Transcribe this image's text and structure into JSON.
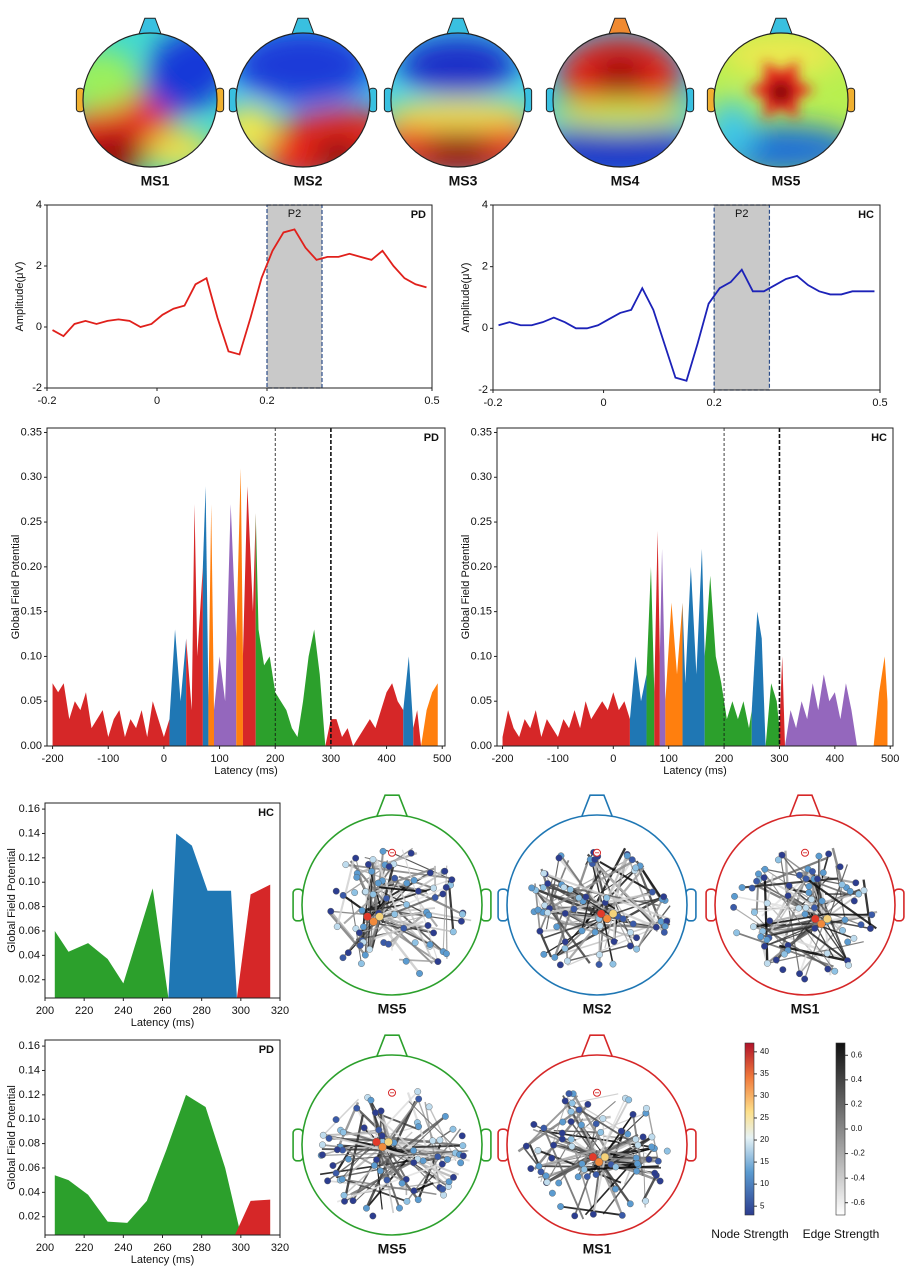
{
  "topomaps": [
    {
      "label": "MS1",
      "color": "#d62728"
    },
    {
      "label": "MS2",
      "color": "#1f77b4"
    },
    {
      "label": "MS3",
      "color": "#ff7f0e"
    },
    {
      "label": "MS4",
      "color": "#9467bd"
    },
    {
      "label": "MS5",
      "color": "#2ca02c"
    }
  ],
  "chart_data": [
    {
      "type": "line",
      "panel_label": "PD",
      "ylabel": "Amplitude(μV)",
      "highlight": {
        "label": "P2",
        "xlim": [
          0.2,
          0.3
        ]
      },
      "x": [
        -0.19,
        -0.17,
        -0.15,
        -0.13,
        -0.11,
        -0.09,
        -0.07,
        -0.05,
        -0.03,
        -0.01,
        0.01,
        0.03,
        0.05,
        0.07,
        0.09,
        0.11,
        0.13,
        0.15,
        0.17,
        0.19,
        0.21,
        0.23,
        0.25,
        0.27,
        0.29,
        0.31,
        0.33,
        0.35,
        0.37,
        0.39,
        0.41,
        0.43,
        0.45,
        0.47,
        0.49
      ],
      "series": [
        {
          "color": "#e0201b",
          "values": [
            -0.1,
            -0.3,
            0.1,
            0.2,
            0.1,
            0.2,
            0.25,
            0.2,
            0.0,
            0.1,
            0.4,
            0.6,
            0.7,
            1.4,
            1.6,
            0.3,
            -0.8,
            -0.9,
            0.3,
            1.6,
            2.5,
            3.1,
            3.2,
            2.6,
            2.2,
            2.3,
            2.3,
            2.4,
            2.3,
            2.2,
            2.5,
            2.0,
            1.6,
            1.4,
            1.3
          ]
        }
      ],
      "xlim": [
        -0.2,
        0.5
      ],
      "xticks": [
        -0.2,
        0,
        0.2,
        0.5
      ],
      "ylim": [
        -2,
        4
      ],
      "yticks": [
        -2,
        0,
        2,
        4
      ]
    },
    {
      "type": "line",
      "panel_label": "HC",
      "ylabel": "Amplitude(μV)",
      "highlight": {
        "label": "P2",
        "xlim": [
          0.2,
          0.3
        ]
      },
      "x": [
        -0.19,
        -0.17,
        -0.15,
        -0.13,
        -0.11,
        -0.09,
        -0.07,
        -0.05,
        -0.03,
        -0.01,
        0.01,
        0.03,
        0.05,
        0.07,
        0.09,
        0.11,
        0.13,
        0.15,
        0.17,
        0.19,
        0.21,
        0.23,
        0.25,
        0.27,
        0.29,
        0.31,
        0.33,
        0.35,
        0.37,
        0.39,
        0.41,
        0.43,
        0.45,
        0.47,
        0.49
      ],
      "series": [
        {
          "color": "#1c22b8",
          "values": [
            0.1,
            0.2,
            0.1,
            0.1,
            0.2,
            0.35,
            0.2,
            0.0,
            0.0,
            0.1,
            0.3,
            0.5,
            0.6,
            1.3,
            0.6,
            -0.5,
            -1.6,
            -1.7,
            -0.5,
            0.8,
            1.3,
            1.5,
            1.9,
            1.2,
            1.2,
            1.4,
            1.6,
            1.7,
            1.4,
            1.2,
            1.1,
            1.1,
            1.2,
            1.2,
            1.2
          ]
        }
      ],
      "xlim": [
        -0.2,
        0.5
      ],
      "xticks": [
        -0.2,
        0,
        0.2,
        0.5
      ],
      "ylim": [
        -2,
        4
      ],
      "yticks": [
        -2,
        0,
        2,
        4
      ]
    },
    {
      "type": "area",
      "panel_label": "PD",
      "ylabel": "Global Field Potential",
      "xlabel": "Latency (ms)",
      "vlines": [
        200,
        300
      ],
      "series": [
        {
          "color": "#d62728",
          "x": [
            -200,
            -190,
            -180,
            -170,
            -160,
            -150,
            -140,
            -130,
            -120,
            -110,
            -100,
            -90,
            -80,
            -70,
            -60,
            -50,
            -40,
            -30,
            -20,
            -10,
            0,
            10
          ],
          "values": [
            0.07,
            0.06,
            0.07,
            0.03,
            0.05,
            0.04,
            0.06,
            0.02,
            0.03,
            0.04,
            0.01,
            0.03,
            0.04,
            0.01,
            0.03,
            0.02,
            0.04,
            0.01,
            0.05,
            0.03,
            0.01,
            0.03
          ]
        },
        {
          "color": "#1f77b4",
          "x": [
            10,
            20,
            30,
            40
          ],
          "values": [
            0.03,
            0.13,
            0.05,
            0.12
          ]
        },
        {
          "color": "#d62728",
          "x": [
            40,
            50,
            55,
            60,
            70
          ],
          "values": [
            0.12,
            0.04,
            0.27,
            0.1,
            0.2
          ]
        },
        {
          "color": "#1f77b4",
          "x": [
            70,
            75,
            80
          ],
          "values": [
            0.2,
            0.29,
            0.05
          ]
        },
        {
          "color": "#ff7f0e",
          "x": [
            80,
            85,
            90
          ],
          "values": [
            0.05,
            0.27,
            0.04
          ]
        },
        {
          "color": "#9467bd",
          "x": [
            90,
            100,
            110,
            120,
            130
          ],
          "values": [
            0.04,
            0.1,
            0.05,
            0.27,
            0.12
          ]
        },
        {
          "color": "#ff7f0e",
          "x": [
            130,
            138,
            142
          ],
          "values": [
            0.12,
            0.31,
            0.1
          ]
        },
        {
          "color": "#d62728",
          "x": [
            142,
            150,
            160,
            165
          ],
          "values": [
            0.1,
            0.29,
            0.15,
            0.26
          ]
        },
        {
          "color": "#2ca02c",
          "x": [
            165,
            170,
            180,
            190,
            200,
            210,
            220,
            230,
            240,
            250,
            260,
            270,
            280,
            290
          ],
          "values": [
            0.26,
            0.13,
            0.09,
            0.1,
            0.06,
            0.05,
            0.04,
            0.02,
            0.01,
            0.05,
            0.1,
            0.13,
            0.08,
            0.0
          ]
        },
        {
          "color": "#d62728",
          "x": [
            290,
            300,
            310,
            320,
            330,
            340,
            350,
            360,
            370,
            380,
            390,
            400,
            410,
            420,
            430
          ],
          "values": [
            0.0,
            0.03,
            0.03,
            0.01,
            0.02,
            0.0,
            0.01,
            0.02,
            0.03,
            0.02,
            0.04,
            0.06,
            0.07,
            0.05,
            0.04
          ]
        },
        {
          "color": "#1f77b4",
          "x": [
            430,
            440,
            448
          ],
          "values": [
            0.04,
            0.1,
            0.02
          ]
        },
        {
          "color": "#d62728",
          "x": [
            448,
            455,
            462
          ],
          "values": [
            0.02,
            0.04,
            0.0
          ]
        },
        {
          "color": "#ff7f0e",
          "x": [
            462,
            472,
            482,
            492
          ],
          "values": [
            0.0,
            0.04,
            0.06,
            0.07
          ]
        }
      ],
      "xlim": [
        -210,
        505
      ],
      "xticks": [
        -200,
        -100,
        0,
        100,
        200,
        300,
        400,
        500
      ],
      "ylim": [
        0,
        0.355
      ],
      "yticks": [
        {
          "value": 0,
          "label": "0.00"
        },
        0.05,
        {
          "value": 0.1,
          "label": "0.10"
        },
        0.15,
        {
          "value": 0.2,
          "label": "0.20"
        },
        0.25,
        {
          "value": 0.3,
          "label": "0.30"
        },
        0.35
      ]
    },
    {
      "type": "area",
      "panel_label": "HC",
      "ylabel": "Global Field Potential",
      "xlabel": "Latency (ms)",
      "vlines": [
        200,
        300
      ],
      "series": [
        {
          "color": "#d62728",
          "x": [
            -200,
            -190,
            -180,
            -170,
            -160,
            -150,
            -140,
            -130,
            -120,
            -110,
            -100,
            -90,
            -80,
            -70,
            -60,
            -50,
            -40,
            -30,
            -20,
            -10,
            0,
            10,
            20,
            30
          ],
          "values": [
            0.01,
            0.04,
            0.02,
            0.01,
            0.03,
            0.02,
            0.04,
            0.01,
            0.03,
            0.02,
            0.01,
            0.03,
            0.02,
            0.04,
            0.02,
            0.05,
            0.03,
            0.04,
            0.05,
            0.04,
            0.06,
            0.04,
            0.05,
            0.03
          ]
        },
        {
          "color": "#1f77b4",
          "x": [
            30,
            40,
            50,
            60
          ],
          "values": [
            0.03,
            0.1,
            0.05,
            0.08
          ]
        },
        {
          "color": "#2ca02c",
          "x": [
            60,
            68,
            74
          ],
          "values": [
            0.08,
            0.2,
            0.06
          ]
        },
        {
          "color": "#d62728",
          "x": [
            74,
            80,
            84
          ],
          "values": [
            0.06,
            0.24,
            0.1
          ]
        },
        {
          "color": "#9467bd",
          "x": [
            84,
            88,
            94
          ],
          "values": [
            0.1,
            0.22,
            0.05
          ]
        },
        {
          "color": "#ff7f0e",
          "x": [
            94,
            105,
            115,
            125
          ],
          "values": [
            0.05,
            0.16,
            0.08,
            0.16
          ]
        },
        {
          "color": "#1f77b4",
          "x": [
            125,
            130,
            140,
            150,
            160,
            165
          ],
          "values": [
            0.16,
            0.07,
            0.2,
            0.08,
            0.22,
            0.1
          ]
        },
        {
          "color": "#2ca02c",
          "x": [
            165,
            175,
            185,
            195,
            205,
            215,
            225,
            235,
            245,
            250
          ],
          "values": [
            0.1,
            0.19,
            0.1,
            0.07,
            0.03,
            0.05,
            0.03,
            0.05,
            0.02,
            0.04
          ]
        },
        {
          "color": "#1f77b4",
          "x": [
            250,
            260,
            268,
            275
          ],
          "values": [
            0.04,
            0.15,
            0.12,
            0.0
          ]
        },
        {
          "color": "#2ca02c",
          "x": [
            275,
            285,
            295,
            300
          ],
          "values": [
            0.0,
            0.07,
            0.05,
            0.02
          ]
        },
        {
          "color": "#d62728",
          "x": [
            300,
            305,
            310
          ],
          "values": [
            0.02,
            0.1,
            0.0
          ]
        },
        {
          "color": "#9467bd",
          "x": [
            310,
            320,
            330,
            340,
            350,
            360,
            370,
            380,
            390,
            400,
            410,
            420,
            430,
            440
          ],
          "values": [
            0.0,
            0.04,
            0.02,
            0.05,
            0.03,
            0.07,
            0.04,
            0.08,
            0.05,
            0.06,
            0.03,
            0.07,
            0.04,
            0.0
          ]
        },
        {
          "color": "#ff7f0e",
          "x": [
            470,
            480,
            490,
            495
          ],
          "values": [
            0.0,
            0.06,
            0.1,
            0.05
          ]
        }
      ],
      "xlim": [
        -210,
        505
      ],
      "xticks": [
        -200,
        -100,
        0,
        100,
        200,
        300,
        400,
        500
      ],
      "ylim": [
        0,
        0.355
      ],
      "yticks": [
        {
          "value": 0,
          "label": "0.00"
        },
        0.05,
        {
          "value": 0.1,
          "label": "0.10"
        },
        0.15,
        {
          "value": 0.2,
          "label": "0.20"
        },
        0.25,
        {
          "value": 0.3,
          "label": "0.30"
        },
        0.35
      ]
    },
    {
      "type": "area",
      "panel_label": "HC",
      "ylabel": "Global Field Potential",
      "xlabel": "Latency (ms)",
      "series": [
        {
          "color": "#2ca02c",
          "x": [
            205,
            212,
            222,
            232,
            240,
            255,
            263
          ],
          "values": [
            0.06,
            0.043,
            0.05,
            0.037,
            0.017,
            0.095,
            0.005
          ]
        },
        {
          "color": "#1f77b4",
          "x": [
            263,
            267,
            275,
            283,
            295,
            298
          ],
          "values": [
            0.005,
            0.14,
            0.13,
            0.093,
            0.093,
            0.005
          ]
        },
        {
          "color": "#d62728",
          "x": [
            298,
            305,
            315
          ],
          "values": [
            0.005,
            0.09,
            0.098
          ]
        }
      ],
      "xlim": [
        200,
        320
      ],
      "xticks": [
        200,
        220,
        240,
        260,
        280,
        300,
        320
      ],
      "ylim": [
        0.005,
        0.165
      ],
      "yticks": [
        0.02,
        0.04,
        0.06,
        0.08,
        {
          "value": 0.1,
          "label": "0.10"
        },
        0.12,
        0.14,
        0.16
      ]
    },
    {
      "type": "area",
      "panel_label": "PD",
      "ylabel": "Global Field Potential",
      "xlabel": "Latency (ms)",
      "series": [
        {
          "color": "#2ca02c",
          "x": [
            205,
            212,
            222,
            232,
            242,
            252,
            262,
            272,
            282,
            292,
            300
          ],
          "values": [
            0.054,
            0.05,
            0.038,
            0.016,
            0.015,
            0.033,
            0.075,
            0.12,
            0.11,
            0.06,
            0.005
          ]
        },
        {
          "color": "#d62728",
          "x": [
            297,
            305,
            315
          ],
          "values": [
            0.005,
            0.033,
            0.034
          ]
        }
      ],
      "xlim": [
        200,
        320
      ],
      "xticks": [
        200,
        220,
        240,
        260,
        280,
        300,
        320
      ],
      "ylim": [
        0.005,
        0.165
      ],
      "yticks": [
        0.02,
        0.04,
        0.06,
        0.08,
        {
          "value": 0.1,
          "label": "0.10"
        },
        0.12,
        0.14,
        0.16
      ]
    }
  ],
  "networks": [
    {
      "label": "MS5",
      "color": "#2ca02c"
    },
    {
      "label": "MS2",
      "color": "#1f77b4"
    },
    {
      "label": "MS1",
      "color": "#d62728"
    },
    {
      "label": "MS5",
      "color": "#2ca02c"
    },
    {
      "label": "MS1",
      "color": "#d62728"
    }
  ],
  "colorbars": [
    {
      "label": "Node Strength",
      "lim": [
        3,
        42
      ],
      "ticks": [
        5,
        10,
        15,
        20,
        25,
        30,
        35,
        40
      ]
    },
    {
      "label": "Edge Strength",
      "lim": [
        -0.7,
        0.7
      ],
      "ticks": [
        -0.6,
        -0.4,
        -0.2,
        {
          "value": 0,
          "label": "0.0"
        },
        0.2,
        0.4,
        0.6
      ]
    }
  ]
}
